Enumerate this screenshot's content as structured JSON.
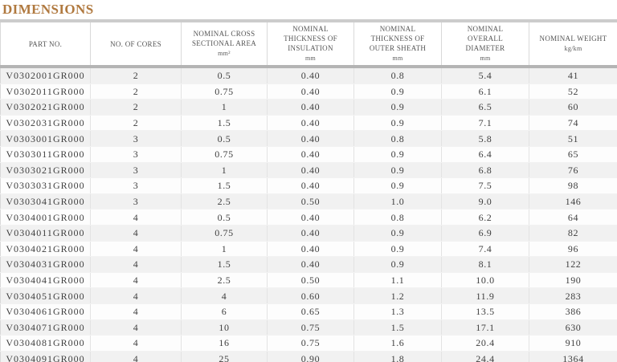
{
  "page": {
    "title": "DIMENSIONS"
  },
  "colors": {
    "title_text": "#b0793f",
    "top_bar": "#cccccc",
    "header_separator": "#b4b4b4",
    "row_stripe": "#f1f1f1",
    "cell_text": "#3f3f3f",
    "header_text": "#545454"
  },
  "table": {
    "columns": [
      {
        "key": "part-no",
        "label": "PART NO.",
        "unit": ""
      },
      {
        "key": "no-of-cores",
        "label": "NO. OF CORES",
        "unit": ""
      },
      {
        "key": "cross-section",
        "label": "NOMINAL CROSS SECTIONAL AREA",
        "unit": "mm²"
      },
      {
        "key": "insulation",
        "label": "NOMINAL THICKNESS OF INSULATION",
        "unit": "mm"
      },
      {
        "key": "outer-sheath",
        "label": "NOMINAL THICKNESS OF OUTER SHEATH",
        "unit": "mm"
      },
      {
        "key": "overall-diameter",
        "label": "NOMINAL OVERALL DIAMETER",
        "unit": "mm"
      },
      {
        "key": "weight",
        "label": "NOMINAL WEIGHT",
        "unit": "kg/km"
      }
    ],
    "rows": [
      [
        "V0302001GR000",
        "2",
        "0.5",
        "0.40",
        "0.8",
        "5.4",
        "41"
      ],
      [
        "V0302011GR000",
        "2",
        "0.75",
        "0.40",
        "0.9",
        "6.1",
        "52"
      ],
      [
        "V0302021GR000",
        "2",
        "1",
        "0.40",
        "0.9",
        "6.5",
        "60"
      ],
      [
        "V0302031GR000",
        "2",
        "1.5",
        "0.40",
        "0.9",
        "7.1",
        "74"
      ],
      [
        "V0303001GR000",
        "3",
        "0.5",
        "0.40",
        "0.8",
        "5.8",
        "51"
      ],
      [
        "V0303011GR000",
        "3",
        "0.75",
        "0.40",
        "0.9",
        "6.4",
        "65"
      ],
      [
        "V0303021GR000",
        "3",
        "1",
        "0.40",
        "0.9",
        "6.8",
        "76"
      ],
      [
        "V0303031GR000",
        "3",
        "1.5",
        "0.40",
        "0.9",
        "7.5",
        "98"
      ],
      [
        "V0303041GR000",
        "3",
        "2.5",
        "0.50",
        "1.0",
        "9.0",
        "146"
      ],
      [
        "V0304001GR000",
        "4",
        "0.5",
        "0.40",
        "0.8",
        "6.2",
        "64"
      ],
      [
        "V0304011GR000",
        "4",
        "0.75",
        "0.40",
        "0.9",
        "6.9",
        "82"
      ],
      [
        "V0304021GR000",
        "4",
        "1",
        "0.40",
        "0.9",
        "7.4",
        "96"
      ],
      [
        "V0304031GR000",
        "4",
        "1.5",
        "0.40",
        "0.9",
        "8.1",
        "122"
      ],
      [
        "V0304041GR000",
        "4",
        "2.5",
        "0.50",
        "1.1",
        "10.0",
        "190"
      ],
      [
        "V0304051GR000",
        "4",
        "4",
        "0.60",
        "1.2",
        "11.9",
        "283"
      ],
      [
        "V0304061GR000",
        "4",
        "6",
        "0.65",
        "1.3",
        "13.5",
        "386"
      ],
      [
        "V0304071GR000",
        "4",
        "10",
        "0.75",
        "1.5",
        "17.1",
        "630"
      ],
      [
        "V0304081GR000",
        "4",
        "16",
        "0.75",
        "1.6",
        "20.4",
        "910"
      ],
      [
        "V0304091GR000",
        "4",
        "25",
        "0.90",
        "1.8",
        "24.4",
        "1364"
      ]
    ]
  }
}
